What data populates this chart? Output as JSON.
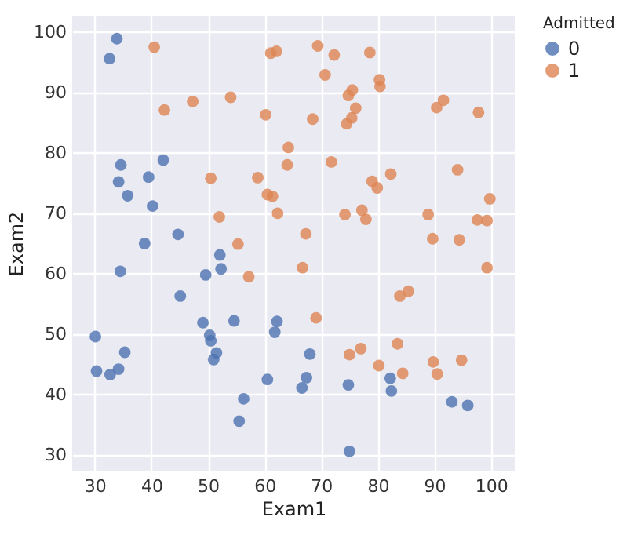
{
  "chart_data": {
    "type": "scatter",
    "xlabel": "Exam1",
    "ylabel": "Exam2",
    "legend_title": "Admitted",
    "legend": "right",
    "grid": true,
    "marker": "circle",
    "xlim": [
      26,
      104.2
    ],
    "ylim": [
      27.4,
      102.7
    ],
    "xticks": [
      30,
      40,
      50,
      60,
      70,
      80,
      90,
      100
    ],
    "yticks": [
      30,
      40,
      50,
      60,
      70,
      80,
      90,
      100
    ],
    "series": [
      {
        "name": "0",
        "color": "#4c72b0",
        "x": [
          34.6,
          30.3,
          35.8,
          45.1,
          95.9,
          75.0,
          39.5,
          68.0,
          67.4,
          50.5,
          34.2,
          93.1,
          61.8,
          38.8,
          52.1,
          40.2,
          54.6,
          33.9,
          74.8,
          34.2,
          51.5,
          82.4,
          51.0,
          62.2,
          34.5,
          50.3,
          49.6,
          32.6,
          35.3,
          56.3,
          30.1,
          44.7,
          66.6,
          49.1,
          32.7,
          60.5,
          82.2,
          42.1,
          52.3,
          55.5
        ],
        "values": [
          78.0,
          43.9,
          72.9,
          56.3,
          38.2,
          30.6,
          76.0,
          46.7,
          42.8,
          48.9,
          44.2,
          38.8,
          50.3,
          65.0,
          63.1,
          71.2,
          52.2,
          98.9,
          41.6,
          75.2,
          46.9,
          40.6,
          45.8,
          52.1,
          60.4,
          49.8,
          59.8,
          95.6,
          47.0,
          39.3,
          49.6,
          66.5,
          41.1,
          51.9,
          43.3,
          42.5,
          42.7,
          78.8,
          60.8,
          35.6
        ]
      },
      {
        "name": "1",
        "color": "#dd8452",
        "x": [
          60.2,
          79.0,
          61.1,
          75.0,
          76.1,
          84.4,
          82.3,
          69.4,
          54.0,
          69.1,
          70.7,
          77.0,
          89.7,
          77.9,
          62.3,
          80.2,
          61.4,
          85.4,
          52.0,
          64.2,
          83.9,
          94.4,
          77.2,
          97.8,
          62.1,
          91.6,
          79.9,
          99.3,
          90.5,
          97.6,
          74.2,
          71.8,
          75.4,
          40.5,
          80.3,
          66.7,
          64.0,
          72.3,
          60.5,
          58.8,
          99.8,
          47.3,
          50.5,
          88.9,
          94.8,
          67.3,
          57.2,
          80.4,
          68.5,
          75.5,
          78.6,
          94.1,
          90.4,
          74.5,
          89.8,
          83.5,
          42.3,
          99.3,
          55.3,
          74.8
        ],
        "values": [
          86.3,
          75.3,
          96.5,
          46.6,
          87.4,
          43.5,
          76.5,
          97.7,
          89.2,
          52.7,
          92.9,
          47.6,
          65.8,
          69.0,
          70.0,
          44.8,
          72.8,
          57.1,
          69.4,
          80.9,
          56.3,
          65.6,
          70.5,
          86.7,
          96.8,
          88.7,
          74.2,
          61.0,
          43.4,
          68.9,
          69.8,
          78.5,
          85.8,
          97.5,
          92.1,
          61.0,
          78.0,
          96.2,
          73.1,
          75.9,
          72.4,
          88.5,
          75.8,
          69.8,
          45.7,
          66.6,
          59.5,
          91.0,
          85.6,
          90.4,
          96.6,
          77.2,
          87.5,
          84.8,
          45.4,
          48.4,
          87.1,
          68.8,
          64.9,
          89.5
        ]
      }
    ]
  }
}
